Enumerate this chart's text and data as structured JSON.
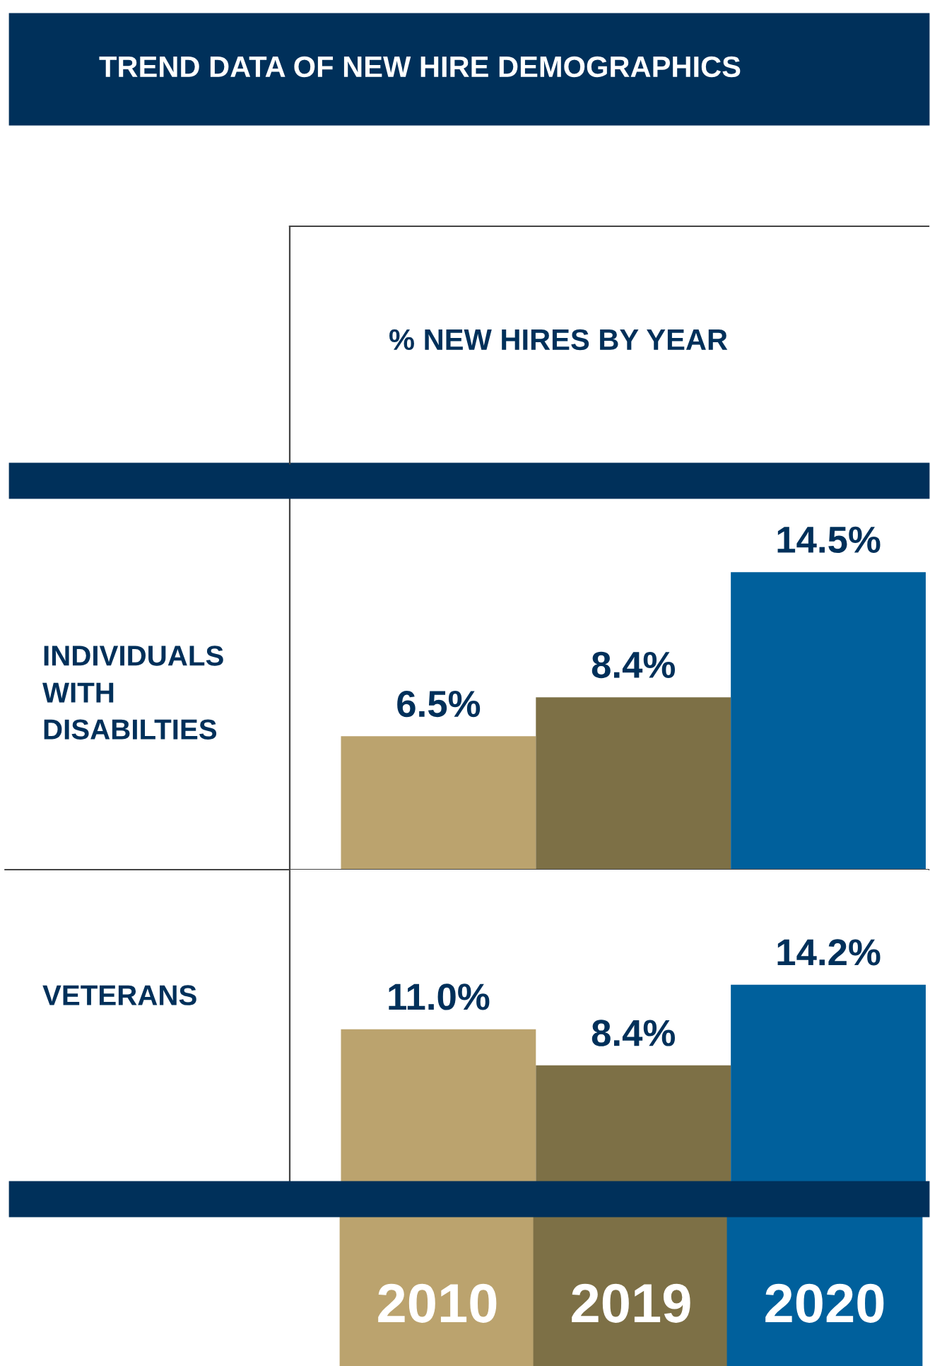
{
  "chart_data": [
    {
      "type": "bar",
      "title": "TREND DATA OF NEW HIRE DEMOGRAPHICS",
      "subtitle": "% NEW HIRES BY YEAR",
      "ylabel": "INDIVIDUALS\nWITH\nDISABILTIES",
      "categories": [
        "2010",
        "2019",
        "2020"
      ],
      "values": [
        6.5,
        8.4,
        14.5
      ],
      "colors": [
        "#bba36e",
        "#7d7046",
        "#00609c"
      ],
      "value_labels": [
        "6.5%",
        "8.4%",
        "14.5%"
      ],
      "tick_labels": false
    },
    {
      "type": "bar",
      "ylabel": "VETERANS",
      "categories": [
        "2010",
        "2019",
        "2020"
      ],
      "values": [
        11.0,
        8.4,
        14.2
      ],
      "colors": [
        "#bba36e",
        "#7d7046",
        "#00609c"
      ],
      "value_labels": [
        "11.0%",
        "8.4%",
        "14.2%"
      ],
      "tick_labels": "x"
    }
  ]
}
